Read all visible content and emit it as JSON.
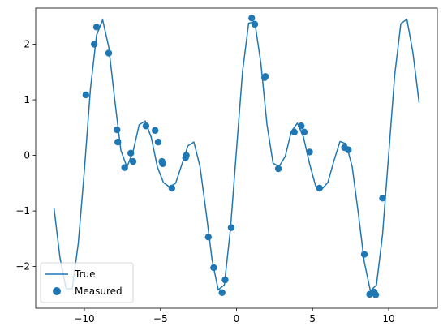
{
  "chart_data": {
    "type": "scatter",
    "title": "",
    "xlabel": "",
    "ylabel": "",
    "xlim": [
      -13.2,
      13.2
    ],
    "ylim": [
      -2.75,
      2.65
    ],
    "grid": false,
    "legend_placement": "lower-left",
    "x_ticks": [
      {
        "value": -10,
        "label": "−10"
      },
      {
        "value": -5,
        "label": "−5"
      },
      {
        "value": 0,
        "label": "0"
      },
      {
        "value": 5,
        "label": "5"
      },
      {
        "value": 10,
        "label": "10"
      }
    ],
    "y_ticks": [
      {
        "value": -2,
        "label": "−2"
      },
      {
        "value": -1,
        "label": "−1"
      },
      {
        "value": 0,
        "label": "0"
      },
      {
        "value": 1,
        "label": "1"
      },
      {
        "value": 2,
        "label": "2"
      }
    ],
    "color": "#1f77b4",
    "series": [
      {
        "name": "True",
        "kind": "line",
        "x": [
          -12.0,
          -11.6,
          -11.2,
          -10.8,
          -10.4,
          -10.0,
          -9.6,
          -9.2,
          -8.8,
          -8.4,
          -8.0,
          -7.6,
          -7.2,
          -6.8,
          -6.4,
          -6.0,
          -5.6,
          -5.2,
          -4.8,
          -4.4,
          -4.0,
          -3.6,
          -3.2,
          -2.8,
          -2.4,
          -2.0,
          -1.6,
          -1.2,
          -0.8,
          -0.4,
          0.0,
          0.4,
          0.8,
          1.2,
          1.6,
          2.0,
          2.4,
          2.8,
          3.2,
          3.6,
          4.0,
          4.4,
          4.8,
          5.2,
          5.6,
          6.0,
          6.4,
          6.8,
          7.2,
          7.6,
          8.0,
          8.4,
          8.8,
          9.2,
          9.6,
          10.0,
          10.4,
          10.8,
          11.2,
          11.6,
          12.0
        ],
        "y": [
          -0.94,
          -1.85,
          -2.4,
          -2.4,
          -1.58,
          -0.27,
          1.2,
          2.16,
          2.44,
          1.95,
          0.99,
          0.09,
          -0.21,
          0.07,
          0.55,
          0.62,
          0.32,
          -0.21,
          -0.49,
          -0.57,
          -0.5,
          -0.17,
          0.17,
          0.24,
          -0.2,
          -1.02,
          -1.89,
          -2.42,
          -2.33,
          -1.33,
          0.1,
          1.52,
          2.38,
          2.4,
          1.66,
          0.56,
          -0.14,
          -0.2,
          -0.02,
          0.43,
          0.58,
          0.33,
          -0.15,
          -0.55,
          -0.61,
          -0.49,
          -0.1,
          0.25,
          0.21,
          -0.2,
          -1.03,
          -1.92,
          -2.44,
          -2.33,
          -1.42,
          0.01,
          1.45,
          2.37,
          2.45,
          1.84,
          0.95
        ]
      },
      {
        "name": "Measured",
        "kind": "scatter",
        "x": [
          -9.9,
          -9.35,
          -9.2,
          -8.4,
          -7.85,
          -7.8,
          -7.35,
          -6.95,
          -6.8,
          -5.95,
          -5.35,
          -5.15,
          -4.9,
          -4.85,
          -4.25,
          -3.35,
          -3.3,
          -1.85,
          -1.5,
          -0.95,
          -0.75,
          -0.35,
          1.0,
          1.2,
          1.85,
          1.9,
          2.75,
          3.8,
          4.25,
          4.45,
          4.8,
          5.45,
          7.1,
          7.35,
          8.4,
          8.75,
          9.05,
          9.15,
          9.6
        ],
        "y": [
          1.09,
          2.0,
          2.31,
          1.84,
          0.46,
          0.24,
          -0.22,
          0.04,
          -0.11,
          0.53,
          0.45,
          0.24,
          -0.11,
          -0.15,
          -0.59,
          -0.04,
          0.0,
          -1.47,
          -2.02,
          -2.47,
          -2.24,
          -1.3,
          2.47,
          2.36,
          1.4,
          1.42,
          -0.24,
          0.42,
          0.53,
          0.42,
          0.06,
          -0.59,
          0.14,
          0.1,
          -1.78,
          -2.5,
          -2.46,
          -2.51,
          -0.77
        ]
      }
    ]
  }
}
